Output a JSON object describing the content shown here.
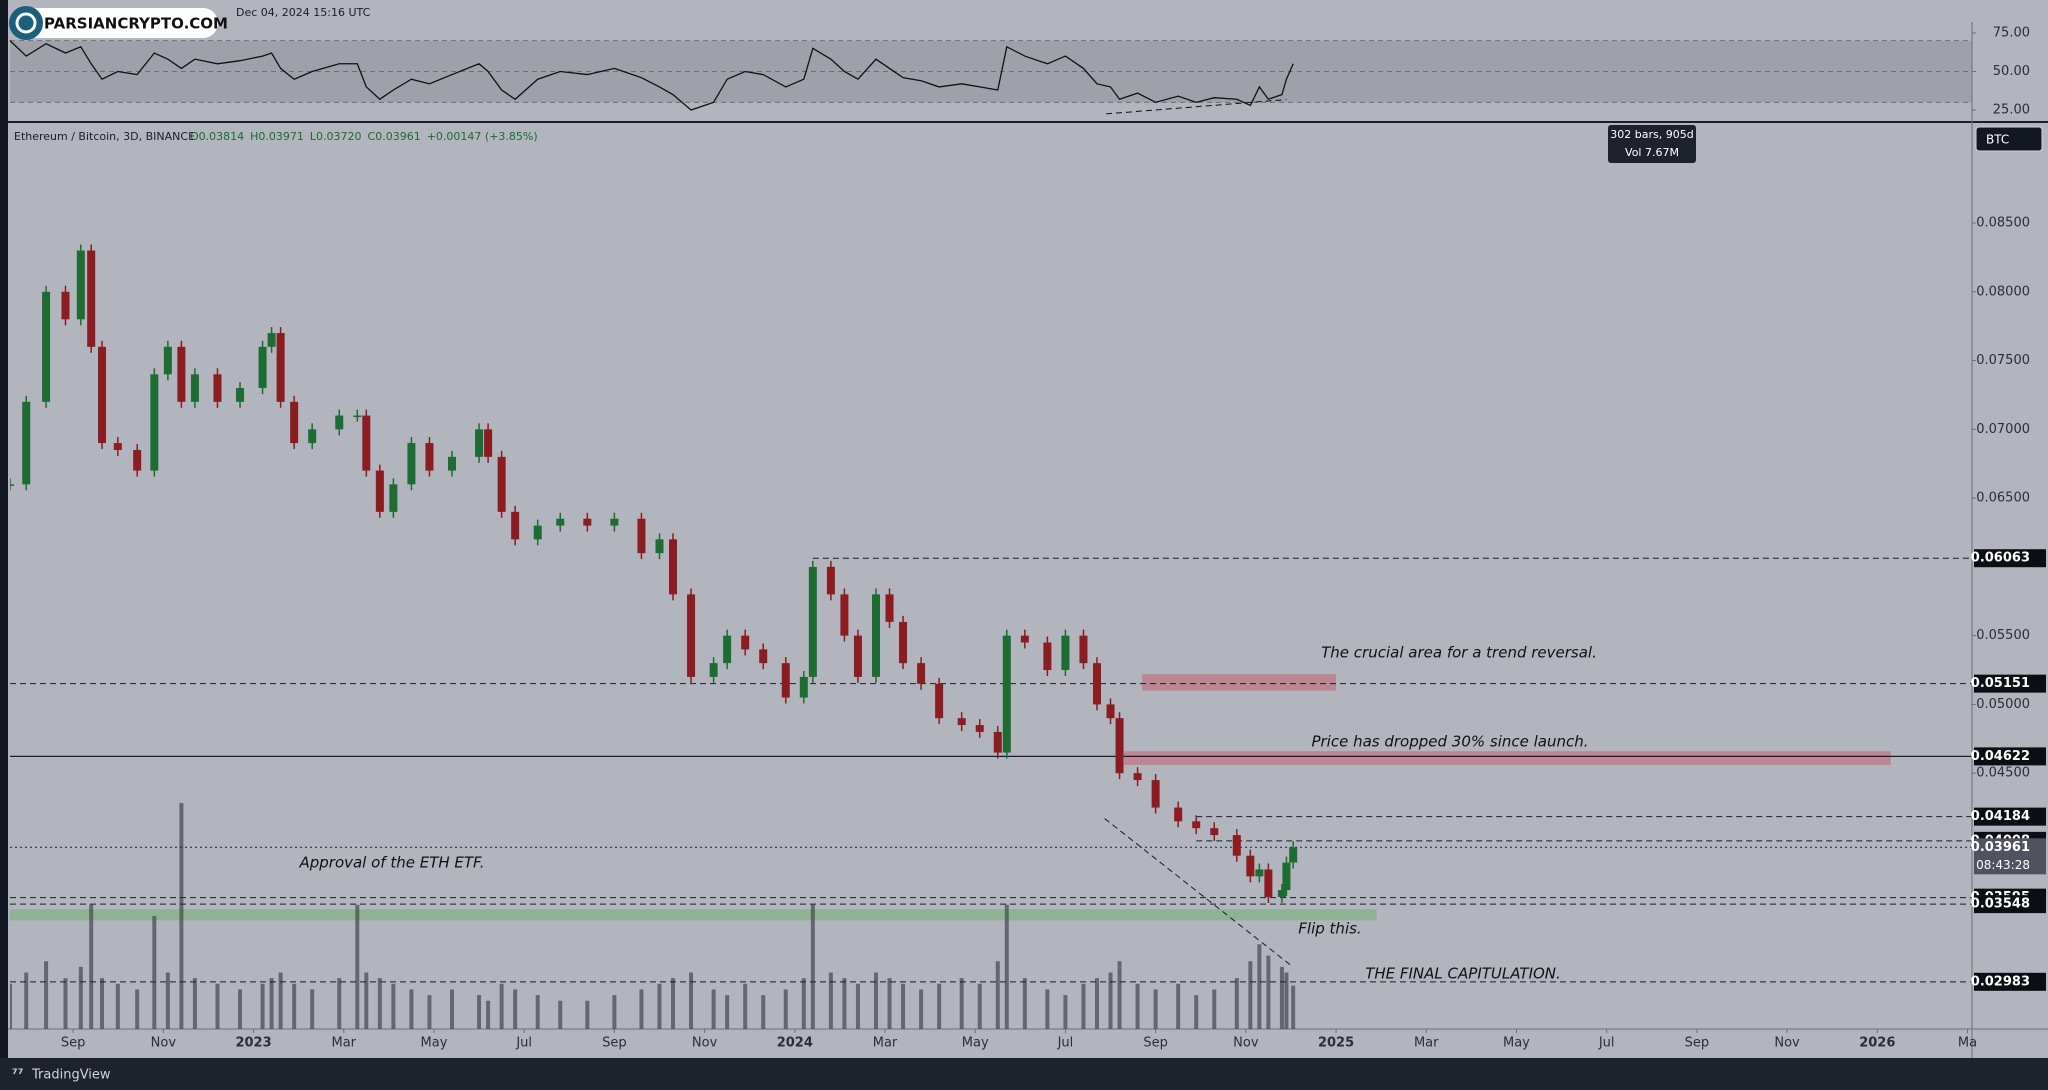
{
  "header": {
    "timestamp": "Dec 04, 2024 15:16 UTC",
    "watermark": "PARSIANCRYPTO.COM"
  },
  "footer": {
    "brand": "TradingView"
  },
  "chart_data": {
    "type": "candlestick",
    "symbol": "Ethereum / Bitcoin, 3D, BINANCE",
    "legend": {
      "open": {
        "value": 0.03814,
        "label": "O0.03814"
      },
      "high": {
        "value": 0.03971,
        "label": "H0.03971"
      },
      "low": {
        "value": 0.0372,
        "label": "L0.03720"
      },
      "close": {
        "value": 0.03961,
        "label": "C0.03961"
      },
      "change": {
        "value": 0.00147,
        "label": "+0.00147 (+3.85%)"
      }
    },
    "currency": "BTC",
    "tooltip": {
      "bars": "302 bars, 905d",
      "volume": "Vol 7.67M"
    },
    "up_color": "#1f6b34",
    "down_color": "#8a1c22",
    "volume_color": "#4a4d55",
    "x": [
      -1.4,
      -1.04,
      -0.6,
      -0.17,
      0.17,
      0.4,
      0.64,
      0.99,
      1.42,
      1.8,
      2.1,
      2.4,
      2.7,
      3.2,
      3.7,
      4.2,
      4.4,
      4.6,
      4.9,
      5.3,
      5.9,
      6.3,
      6.5,
      6.8,
      7.1,
      7.5,
      7.9,
      8.4,
      9.0,
      9.2,
      9.5,
      9.8,
      10.3,
      10.8,
      11.4,
      12,
      12.6,
      13.0,
      13.3,
      13.7,
      14.2,
      14.5,
      14.9,
      15.3,
      15.8,
      16.2,
      16.4,
      16.8,
      17.1,
      17.4,
      17.8,
      18.1,
      18.4,
      18.8,
      19.2,
      19.7,
      20.1,
      20.5,
      20.7,
      21.1,
      21.6,
      22.0,
      22.4,
      22.7,
      23.0,
      23.2,
      23.6,
      24.0,
      24.5,
      24.9,
      25.3,
      25.8,
      26.1,
      26.3,
      26.5,
      26.8,
      26.9,
      27.05
    ],
    "values": [
      0.066,
      0.072,
      0.08,
      0.078,
      0.083,
      0.076,
      0.069,
      0.0685,
      0.067,
      0.074,
      0.076,
      0.072,
      0.074,
      0.072,
      0.073,
      0.076,
      0.077,
      0.072,
      0.069,
      0.07,
      0.071,
      0.071,
      0.067,
      0.064,
      0.066,
      0.069,
      0.067,
      0.068,
      0.07,
      0.068,
      0.064,
      0.062,
      0.063,
      0.0635,
      0.063,
      0.0635,
      0.061,
      0.062,
      0.058,
      0.052,
      0.053,
      0.055,
      0.054,
      0.053,
      0.0505,
      0.052,
      0.06,
      0.058,
      0.055,
      0.052,
      0.058,
      0.056,
      0.053,
      0.0515,
      0.049,
      0.0485,
      0.048,
      0.0465,
      0.055,
      0.0545,
      0.0525,
      0.055,
      0.053,
      0.05,
      0.049,
      0.045,
      0.0445,
      0.0425,
      0.0415,
      0.041,
      0.0405,
      0.039,
      0.0375,
      0.038,
      0.036,
      0.0365,
      0.0385,
      0.03961
    ],
    "volume": [
      8,
      10,
      12,
      9,
      11,
      22,
      9,
      8,
      7,
      20,
      10,
      40,
      9,
      8,
      7,
      8,
      9,
      10,
      8,
      7,
      9,
      22,
      10,
      9,
      8,
      7,
      6,
      7,
      6,
      5,
      8,
      7,
      6,
      5,
      5,
      6,
      7,
      8,
      9,
      10,
      7,
      6,
      8,
      6,
      7,
      9,
      22,
      10,
      9,
      8,
      10,
      9,
      8,
      7,
      8,
      9,
      8,
      12,
      22,
      9,
      7,
      6,
      8,
      9,
      10,
      12,
      8,
      7,
      8,
      6,
      7,
      9,
      12,
      15,
      13,
      11,
      10,
      7.67
    ],
    "xlim": [
      -1.4,
      42.1
    ],
    "xticks": [
      {
        "value": 0,
        "label": "Sep"
      },
      {
        "value": 2,
        "label": "Nov"
      },
      {
        "value": 4,
        "label": "2023"
      },
      {
        "value": 6,
        "label": "Mar"
      },
      {
        "value": 8,
        "label": "May"
      },
      {
        "value": 10,
        "label": "Jul"
      },
      {
        "value": 12,
        "label": "Sep"
      },
      {
        "value": 14,
        "label": "Nov"
      },
      {
        "value": 16,
        "label": "2024"
      },
      {
        "value": 18,
        "label": "Mar"
      },
      {
        "value": 20,
        "label": "May"
      },
      {
        "value": 22,
        "label": "Jul"
      },
      {
        "value": 24,
        "label": "Sep"
      },
      {
        "value": 26,
        "label": "Nov"
      },
      {
        "value": 28,
        "label": "2025"
      },
      {
        "value": 30,
        "label": "Mar"
      },
      {
        "value": 32,
        "label": "May"
      },
      {
        "value": 34,
        "label": "Jul"
      },
      {
        "value": 36,
        "label": "Sep"
      },
      {
        "value": 38,
        "label": "Nov"
      },
      {
        "value": 40,
        "label": "2026"
      },
      {
        "value": 42,
        "label": "Ma"
      }
    ],
    "ylim": [
      0.0264,
      0.0922
    ],
    "yticks": [
      {
        "value": 0.045,
        "label": "0.04500"
      },
      {
        "value": 0.05,
        "label": "0.05000"
      },
      {
        "value": 0.055,
        "label": "0.05500"
      },
      {
        "value": 0.065,
        "label": "0.06500"
      },
      {
        "value": 0.07,
        "label": "0.07000"
      },
      {
        "value": 0.075,
        "label": "0.07500"
      },
      {
        "value": 0.08,
        "label": "0.08000"
      },
      {
        "value": 0.085,
        "label": "0.08500"
      }
    ],
    "levels": [
      {
        "value": 0.06063,
        "style": "dashed",
        "from": 16.4
      },
      {
        "value": 0.05151,
        "style": "dashed"
      },
      {
        "value": 0.04622,
        "style": "solid"
      },
      {
        "value": 0.04184,
        "style": "dashed",
        "from": 24.9
      },
      {
        "value": 0.04008,
        "style": "dashed",
        "from": 24.9
      },
      {
        "value": 0.03961,
        "style": "dotted",
        "countdown": "08:43:28"
      },
      {
        "value": 0.03595,
        "style": "dashed"
      },
      {
        "value": 0.03548,
        "style": "dashed"
      },
      {
        "value": 0.02983,
        "style": "dashed"
      }
    ],
    "zones": [
      {
        "from": 23.7,
        "to": 28.0,
        "low": 0.051,
        "high": 0.0522,
        "color": "rgba(196,96,110,0.55)"
      },
      {
        "from": 23.3,
        "to": 40.3,
        "low": 0.0456,
        "high": 0.0466,
        "color": "rgba(196,96,110,0.55)"
      },
      {
        "from": -1.4,
        "to": 28.9,
        "low": 0.0343,
        "high": 0.0351,
        "color": "rgba(120,176,120,0.6)"
      }
    ],
    "trendlines": [
      {
        "x": [
          22.87,
          27.01
        ],
        "y": [
          0.0417,
          0.031
        ]
      }
    ],
    "annotations": [
      "The crucial area for a trend reversal.",
      "Price has dropped 30% since launch.",
      "Approval of the ETH ETF.",
      "Flip this.",
      "THE FINAL CAPITULATION."
    ],
    "rsi": {
      "values": [
        70,
        60,
        68,
        62,
        66,
        55,
        45,
        50,
        48,
        62,
        58,
        52,
        58,
        55,
        57,
        60,
        62,
        52,
        45,
        50,
        55,
        55,
        40,
        32,
        38,
        45,
        42,
        48,
        55,
        50,
        38,
        32,
        45,
        50,
        48,
        52,
        46,
        40,
        35,
        25,
        30,
        45,
        50,
        48,
        40,
        45,
        65,
        58,
        50,
        45,
        58,
        52,
        46,
        44,
        40,
        42,
        40,
        38,
        66,
        60,
        55,
        60,
        52,
        42,
        40,
        32,
        36,
        30,
        34,
        30,
        33,
        32,
        28,
        40,
        32,
        35,
        45,
        55
      ],
      "color": "#111111",
      "ylim": [
        17.9,
        80.8
      ],
      "yticks": [
        {
          "value": 75,
          "label": "75.00"
        },
        {
          "value": 50,
          "label": "50.00"
        },
        {
          "value": 25,
          "label": "25.00"
        }
      ],
      "levels": [
        30,
        50,
        70
      ],
      "trendline": {
        "x": [
          22.9,
          26.9
        ],
        "y": [
          22.5,
          31.8
        ]
      }
    }
  }
}
